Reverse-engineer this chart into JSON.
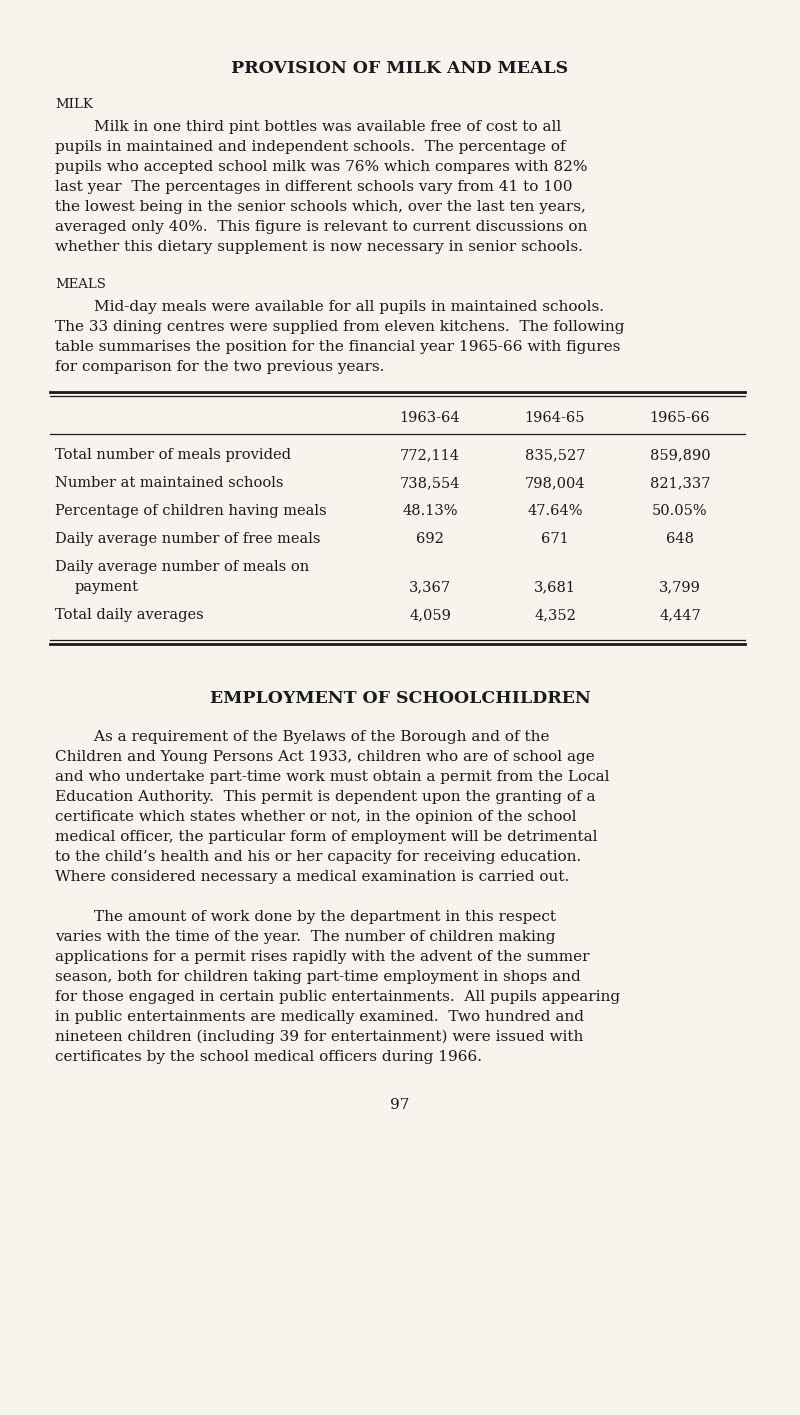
{
  "bg_color": "#f7f4ee",
  "title1": "PROVISION OF MILK AND MEALS",
  "section1_label": "MILK",
  "milk_lines": [
    "        Milk in one third pint bottles was available free of cost to all",
    "pupils in maintained and independent schools.  The percentage of",
    "pupils who accepted school milk was 76% which compares with 82%",
    "last year  The percentages in different schools vary from 41 to 100",
    "the lowest being in the senior schools which, over the last ten years,",
    "averaged only 40%.  This figure is relevant to current discussions on",
    "whether this dietary supplement is now necessary in senior schools."
  ],
  "section2_label": "MEALS",
  "meals_lines": [
    "        Mid-day meals were available for all pupils in maintained schools.",
    "The 33 dining centres were supplied from eleven kitchens.  The following",
    "table summarises the position for the financial year 1965-66 with figures",
    "for comparison for the two previous years."
  ],
  "table_headers": [
    "",
    "1963-64",
    "1964-65",
    "1965-66"
  ],
  "table_col1_lines": [
    [
      "Total number of meals provided"
    ],
    [
      "Number at maintained schools"
    ],
    [
      "Percentage of children having meals"
    ],
    [
      "Daily average number of free meals"
    ],
    [
      "Daily average number of meals on",
      "    payment"
    ],
    [
      "Total daily averages"
    ]
  ],
  "table_col2": [
    "772,114",
    "738,554",
    "48.13%",
    "692",
    "3,367",
    "4,059"
  ],
  "table_col3": [
    "835,527",
    "798,004",
    "47.64%",
    "671",
    "3,681",
    "4,352"
  ],
  "table_col4": [
    "859,890",
    "821,337",
    "50.05%",
    "648",
    "3,799",
    "4,447"
  ],
  "title2": "EMPLOYMENT OF SCHOOLCHILDREN",
  "employ_lines1": [
    "        As a requirement of the Byelaws of the Borough and of the",
    "Children and Young Persons Act 1933, children who are of school age",
    "and who undertake part-time work must obtain a permit from the Local",
    "Education Authority.  This permit is dependent upon the granting of a",
    "certificate which states whether or not, in the opinion of the school",
    "medical officer, the particular form of employment will be detrimental",
    "to the child’s health and his or her capacity for receiving education.",
    "Where considered necessary a medical examination is carried out."
  ],
  "employ_lines2": [
    "        The amount of work done by the department in this respect",
    "varies with the time of the year.  The number of children making",
    "applications for a permit rises rapidly with the advent of the summer",
    "season, both for children taking part-time employment in shops and",
    "for those engaged in certain public entertainments.  All pupils appearing",
    "in public entertainments are medically examined.  Two hundred and",
    "nineteen children (including 39 for entertainment) were issued with",
    "certificates by the school medical officers during 1966."
  ],
  "page_number": "97",
  "text_color": "#1a1a1a",
  "font_size_title": 12.5,
  "font_size_section": 9.5,
  "font_size_body": 11.0,
  "font_size_table": 10.5,
  "font_size_page": 11.0
}
